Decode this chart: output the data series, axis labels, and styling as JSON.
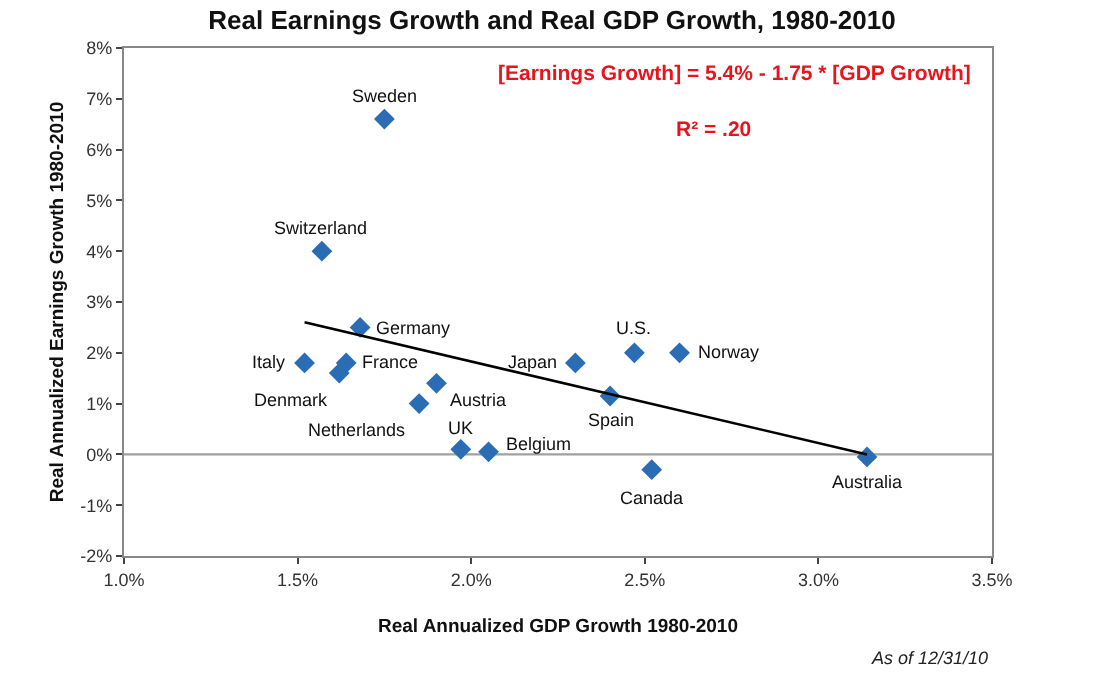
{
  "chart_data": {
    "type": "scatter",
    "title": "Real Earnings Growth and Real GDP Growth, 1980-2010",
    "xlabel": "Real Annualized GDP Growth 1980-2010",
    "ylabel": "Real Annualized Earnings Growth 1980-2010",
    "series": [
      {
        "color": "#2a6db5",
        "marker": "diamond",
        "x": [
          1.75,
          1.57,
          1.68,
          1.52,
          1.64,
          1.62,
          1.9,
          1.85,
          1.97,
          2.05,
          2.3,
          2.4,
          2.52,
          3.14,
          2.47,
          2.6
        ],
        "values": [
          6.6,
          4.0,
          2.5,
          1.8,
          1.8,
          1.6,
          1.4,
          1.0,
          0.1,
          0.05,
          1.8,
          1.15,
          -0.3,
          -0.05,
          2.0,
          2.0
        ]
      },
      {
        "type": "line",
        "color": "#000000",
        "marker": "none",
        "x": [
          1.52,
          3.14
        ],
        "values": [
          2.6,
          0.0
        ]
      }
    ],
    "annotations": [
      {
        "text": "Sweden",
        "x": 1.75,
        "y": 6.6
      },
      {
        "text": "Switzerland",
        "x": 1.57,
        "y": 4.0
      },
      {
        "text": "Germany",
        "x": 1.68,
        "y": 2.5
      },
      {
        "text": "Italy",
        "x": 1.52,
        "y": 1.8
      },
      {
        "text": "France",
        "x": 1.64,
        "y": 1.8
      },
      {
        "text": "Denmark",
        "x": 1.62,
        "y": 1.6
      },
      {
        "text": "Austria",
        "x": 1.9,
        "y": 1.4
      },
      {
        "text": "Netherlands",
        "x": 1.85,
        "y": 1.0
      },
      {
        "text": "UK",
        "x": 1.97,
        "y": 0.1
      },
      {
        "text": "Belgium",
        "x": 2.05,
        "y": 0.05
      },
      {
        "text": "Japan",
        "x": 2.3,
        "y": 1.8
      },
      {
        "text": "Spain",
        "x": 2.4,
        "y": 1.15
      },
      {
        "text": "Canada",
        "x": 2.52,
        "y": -0.3
      },
      {
        "text": "Australia",
        "x": 3.14,
        "y": -0.05
      },
      {
        "text": "U.S.",
        "x": 2.47,
        "y": 2.0
      },
      {
        "text": "Norway",
        "x": 2.6,
        "y": 2.0
      },
      "[Earnings Growth] = 5.4% - 1.75 * [GDP Growth]",
      "R² = .20",
      "As of 12/31/10"
    ],
    "xlim": [
      1.0,
      3.5
    ],
    "xticks": [
      {
        "value": 1.0,
        "label": "1.0%"
      },
      {
        "value": 1.5,
        "label": "1.5%"
      },
      {
        "value": 2.0,
        "label": "2.0%"
      },
      {
        "value": 2.5,
        "label": "2.5%"
      },
      {
        "value": 3.0,
        "label": "3.0%"
      },
      {
        "value": 3.5,
        "label": "3.5%"
      }
    ],
    "ylim": [
      -2,
      8
    ],
    "yticks": [
      {
        "value": -2,
        "label": "-2%"
      },
      {
        "value": -1,
        "label": "-1%"
      },
      {
        "value": 0,
        "label": "0%"
      },
      {
        "value": 1,
        "label": "1%"
      },
      {
        "value": 2,
        "label": "2%"
      },
      {
        "value": 3,
        "label": "3%"
      },
      {
        "value": 4,
        "label": "4%"
      },
      {
        "value": 5,
        "label": "5%"
      },
      {
        "value": 6,
        "label": "6%"
      },
      {
        "value": 7,
        "label": "7%"
      },
      {
        "value": 8,
        "label": "8%"
      }
    ],
    "ref_lines": [
      {
        "axis": "y",
        "value": 0,
        "color": "#a0a0a0"
      }
    ],
    "grid": false
  }
}
